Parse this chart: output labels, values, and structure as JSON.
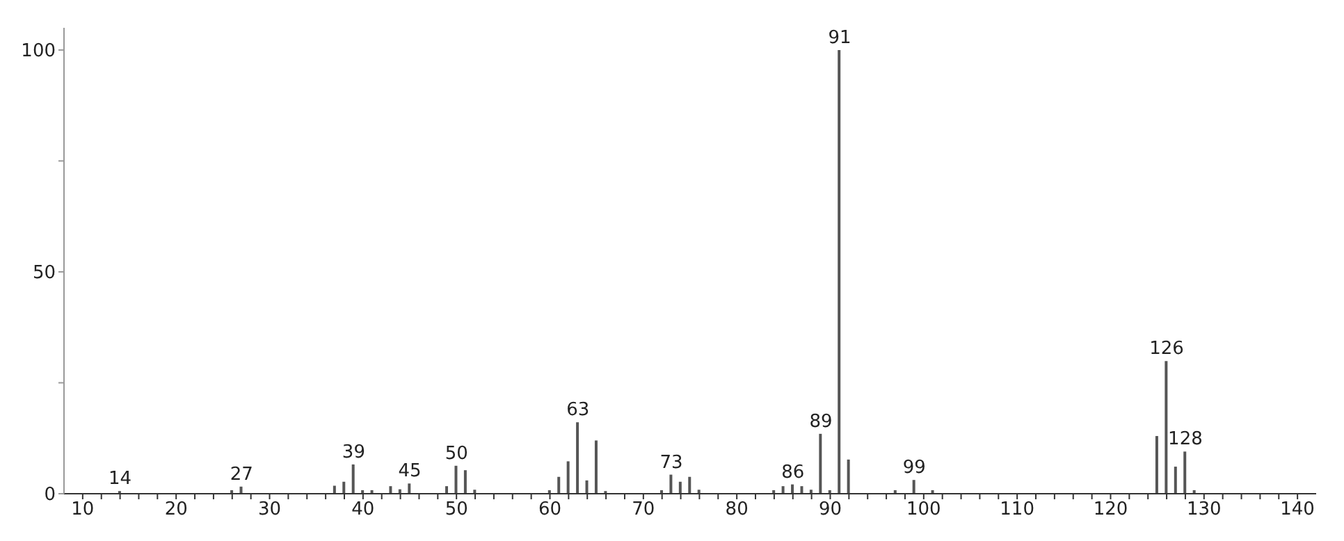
{
  "chart_data": {
    "type": "bar",
    "x": [
      14,
      26,
      27,
      37,
      38,
      39,
      40,
      41,
      43,
      44,
      45,
      49,
      50,
      51,
      52,
      60,
      61,
      62,
      63,
      64,
      65,
      66,
      72,
      73,
      74,
      75,
      76,
      84,
      85,
      86,
      87,
      88,
      89,
      90,
      91,
      92,
      97,
      99,
      101,
      125,
      126,
      127,
      128,
      129
    ],
    "series": [
      {
        "color": "#555555",
        "values": [
          0.6,
          0.8,
          1.6,
          1.8,
          2.7,
          6.6,
          0.8,
          0.8,
          1.7,
          1,
          2.3,
          1.7,
          6.3,
          5.3,
          0.9,
          0.8,
          3.8,
          7.3,
          16.1,
          3,
          12,
          0.6,
          0.8,
          4.3,
          2.7,
          3.8,
          0.9,
          0.8,
          1.7,
          2.1,
          1.7,
          0.9,
          13.5,
          0.8,
          100,
          7.7,
          0.8,
          3.1,
          0.8,
          13,
          29.9,
          6.1,
          9.5,
          0.8
        ]
      }
    ],
    "xlim": [
      8,
      142
    ],
    "xticks": [
      10,
      {
        "value": 12,
        "label": null
      },
      {
        "value": 14,
        "label": null
      },
      {
        "value": 16,
        "label": null
      },
      {
        "value": 18,
        "label": null
      },
      20,
      {
        "value": 22,
        "label": null
      },
      {
        "value": 24,
        "label": null
      },
      {
        "value": 26,
        "label": null
      },
      {
        "value": 28,
        "label": null
      },
      30,
      {
        "value": 32,
        "label": null
      },
      {
        "value": 34,
        "label": null
      },
      {
        "value": 36,
        "label": null
      },
      {
        "value": 38,
        "label": null
      },
      40,
      {
        "value": 42,
        "label": null
      },
      {
        "value": 44,
        "label": null
      },
      {
        "value": 46,
        "label": null
      },
      {
        "value": 48,
        "label": null
      },
      50,
      {
        "value": 52,
        "label": null
      },
      {
        "value": 54,
        "label": null
      },
      {
        "value": 56,
        "label": null
      },
      {
        "value": 58,
        "label": null
      },
      60,
      {
        "value": 62,
        "label": null
      },
      {
        "value": 64,
        "label": null
      },
      {
        "value": 66,
        "label": null
      },
      {
        "value": 68,
        "label": null
      },
      70,
      {
        "value": 72,
        "label": null
      },
      {
        "value": 74,
        "label": null
      },
      {
        "value": 76,
        "label": null
      },
      {
        "value": 78,
        "label": null
      },
      80,
      {
        "value": 82,
        "label": null
      },
      {
        "value": 84,
        "label": null
      },
      {
        "value": 86,
        "label": null
      },
      {
        "value": 88,
        "label": null
      },
      90,
      {
        "value": 92,
        "label": null
      },
      {
        "value": 94,
        "label": null
      },
      {
        "value": 96,
        "label": null
      },
      {
        "value": 98,
        "label": null
      },
      100,
      {
        "value": 102,
        "label": null
      },
      {
        "value": 104,
        "label": null
      },
      {
        "value": 106,
        "label": null
      },
      {
        "value": 108,
        "label": null
      },
      110,
      {
        "value": 112,
        "label": null
      },
      {
        "value": 114,
        "label": null
      },
      {
        "value": 116,
        "label": null
      },
      {
        "value": 118,
        "label": null
      },
      120,
      {
        "value": 122,
        "label": null
      },
      {
        "value": 124,
        "label": null
      },
      {
        "value": 126,
        "label": null
      },
      {
        "value": 128,
        "label": null
      },
      130,
      {
        "value": 132,
        "label": null
      },
      {
        "value": 134,
        "label": null
      },
      {
        "value": 136,
        "label": null
      },
      {
        "value": 138,
        "label": null
      },
      140
    ],
    "ylim": [
      0,
      105
    ],
    "yticks": [
      0,
      {
        "value": 25,
        "label": null
      },
      50,
      {
        "value": 75,
        "label": null
      },
      100
    ],
    "annotations": [
      {
        "text": "14",
        "x": 14,
        "y": 0.6
      },
      {
        "text": "27",
        "x": 27,
        "y": 1.6
      },
      {
        "text": "39",
        "x": 39,
        "y": 6.6
      },
      {
        "text": "45",
        "x": 45,
        "y": 2.3
      },
      {
        "text": "50",
        "x": 50,
        "y": 6.3
      },
      {
        "text": "63",
        "x": 63,
        "y": 16.1
      },
      {
        "text": "73",
        "x": 73,
        "y": 4.3
      },
      {
        "text": "86",
        "x": 86,
        "y": 2.1
      },
      {
        "text": "89",
        "x": 89,
        "y": 13.5
      },
      {
        "text": "91",
        "x": 91,
        "y": 100
      },
      {
        "text": "99",
        "x": 99,
        "y": 3.1
      },
      {
        "text": "126",
        "x": 126,
        "y": 29.9
      },
      {
        "text": "128",
        "x": 128,
        "y": 9.5
      }
    ]
  }
}
